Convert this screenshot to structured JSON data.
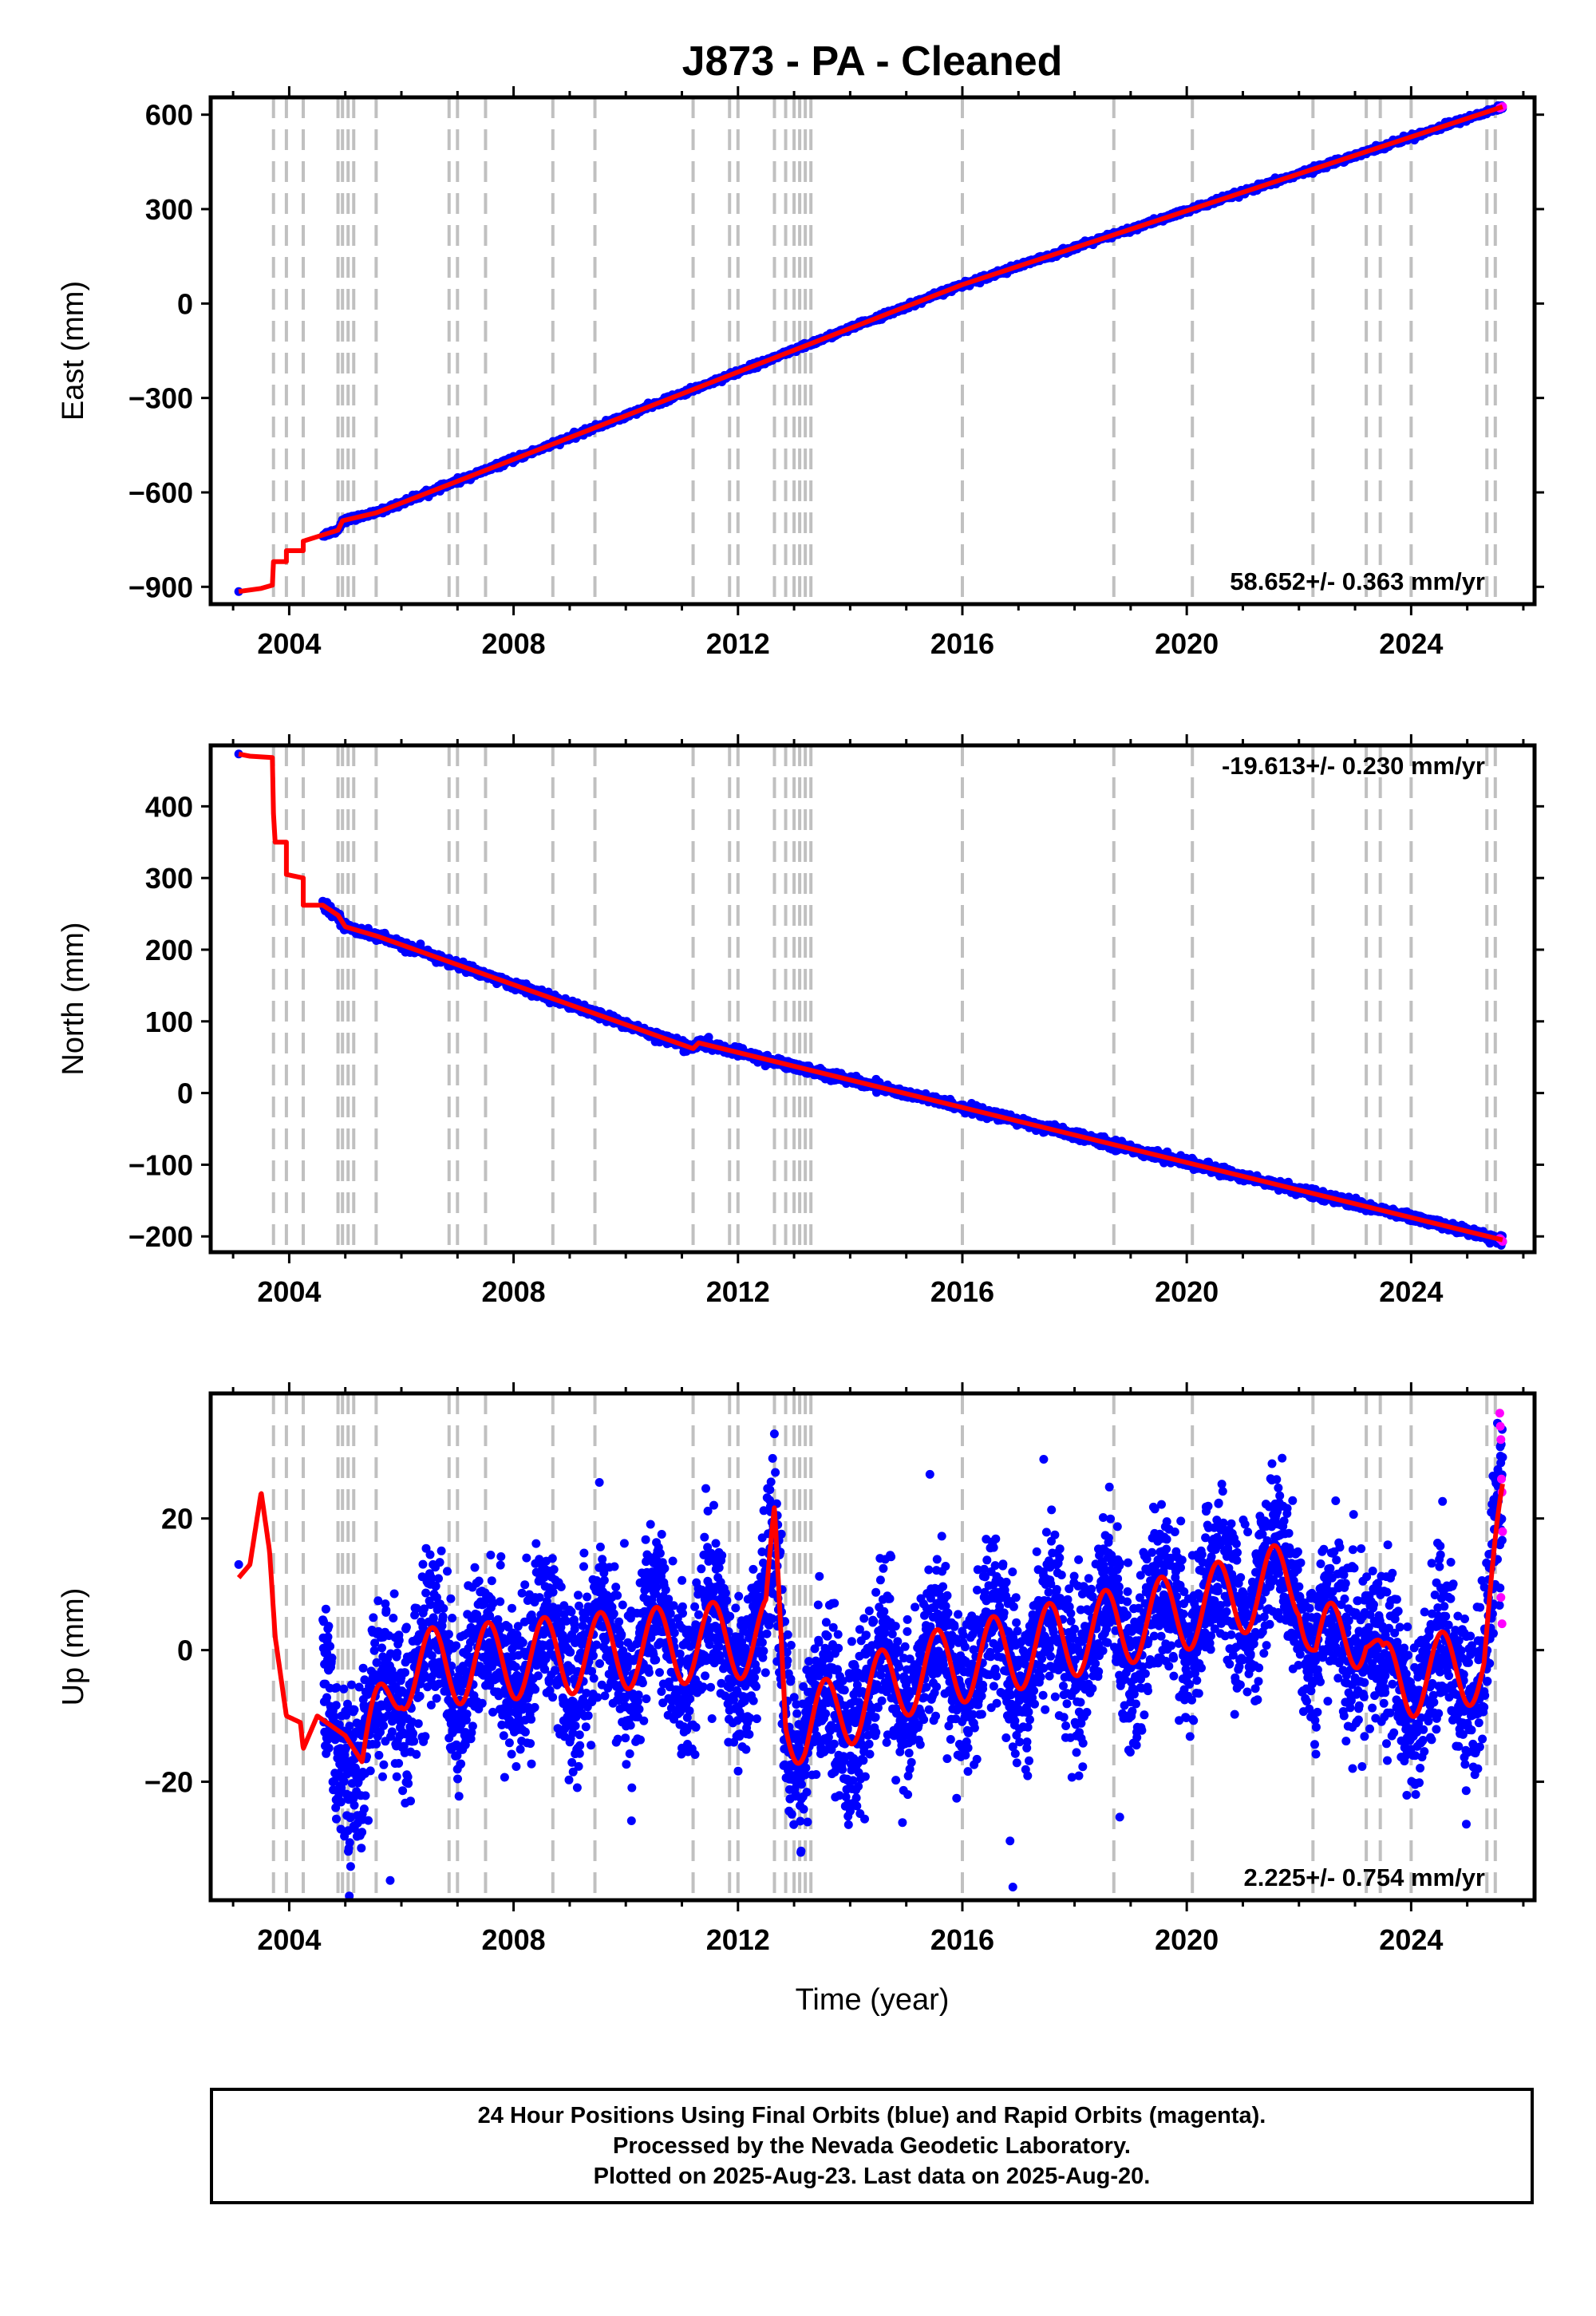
{
  "title": "J873  - PA - Cleaned",
  "footer": {
    "line1": "24 Hour Positions Using Final Orbits (blue) and Rapid Orbits (magenta).",
    "line2": "Processed by the Nevada Geodetic Laboratory.",
    "line3": "Plotted on 2025-Aug-23. Last data on 2025-Aug-20."
  },
  "colors": {
    "final_points": "#0000ff",
    "rapid_points": "#ff00ff",
    "model_line": "#ff0000",
    "event_lines": "#c0c0c0",
    "frame": "#000000"
  },
  "shared": {
    "xlabel": "Time (year)",
    "xlim": [
      2002.6,
      2026.2
    ],
    "x_ticks": [
      2004,
      2008,
      2012,
      2016,
      2020,
      2024
    ],
    "event_lines_year": [
      2003.72,
      2003.95,
      2004.25,
      2004.87,
      2004.95,
      2005.05,
      2005.15,
      2005.55,
      2006.85,
      2007.0,
      2007.5,
      2008.7,
      2009.45,
      2011.2,
      2011.85,
      2012.0,
      2012.65,
      2012.85,
      2013.0,
      2013.1,
      2013.2,
      2013.3,
      2016.0,
      2018.7,
      2020.1,
      2022.25,
      2023.2,
      2023.45,
      2024.0,
      2025.35,
      2025.5
    ]
  },
  "chart_data": [
    {
      "type": "scatter",
      "component": "east",
      "ylabel": "East (mm)",
      "ylim": [
        -955,
        655
      ],
      "y_ticks": [
        -900,
        -600,
        -300,
        0,
        300,
        600
      ],
      "rate_label": "58.652+/- 0.363 mm/yr",
      "rate_position": "bottom-right",
      "data_start": 2003.1,
      "data_start_value": -915,
      "data_end": 2025.63,
      "model_knots": [
        [
          2003.1,
          -915
        ],
        [
          2003.5,
          -905
        ],
        [
          2003.7,
          -895
        ],
        [
          2003.72,
          -820
        ],
        [
          2003.95,
          -820
        ],
        [
          2003.95,
          -785
        ],
        [
          2004.25,
          -785
        ],
        [
          2004.25,
          -755
        ],
        [
          2004.87,
          -720
        ],
        [
          2004.95,
          -690
        ],
        [
          2005.55,
          -665
        ],
        [
          2016.0,
          60
        ],
        [
          2025.63,
          625
        ]
      ],
      "series": [
        {
          "name": "final",
          "noise_mm": 4
        },
        {
          "name": "rapid",
          "x": [
            2025.58,
            2025.6,
            2025.62,
            2025.63
          ],
          "y": [
            621,
            622,
            624,
            626
          ]
        }
      ]
    },
    {
      "type": "scatter",
      "component": "north",
      "ylabel": "North (mm)",
      "ylim": [
        -222,
        485
      ],
      "y_ticks": [
        -200,
        -100,
        0,
        100,
        200,
        300,
        400
      ],
      "rate_label": "-19.613+/- 0.230 mm/yr",
      "rate_position": "top-right",
      "data_start": 2003.1,
      "data_start_value": 473,
      "data_end": 2025.63,
      "model_knots": [
        [
          2003.1,
          473
        ],
        [
          2003.3,
          470
        ],
        [
          2003.7,
          468
        ],
        [
          2003.72,
          390
        ],
        [
          2003.75,
          350
        ],
        [
          2003.95,
          350
        ],
        [
          2003.95,
          305
        ],
        [
          2004.25,
          300
        ],
        [
          2004.25,
          262
        ],
        [
          2004.6,
          262
        ],
        [
          2004.87,
          248
        ],
        [
          2005.0,
          232
        ],
        [
          2005.6,
          218
        ],
        [
          2011.2,
          62
        ],
        [
          2011.3,
          70
        ],
        [
          2025.63,
          -205
        ]
      ],
      "series": [
        {
          "name": "final",
          "noise_mm": 3
        },
        {
          "name": "rapid",
          "x": [
            2025.58,
            2025.6,
            2025.62,
            2025.63
          ],
          "y": [
            -203,
            -204,
            -206,
            -207
          ]
        }
      ]
    },
    {
      "type": "scatter",
      "component": "up",
      "ylabel": "Up (mm)",
      "ylim": [
        -38,
        39
      ],
      "y_ticks": [
        -20,
        0,
        20
      ],
      "rate_label": "2.225+/- 0.754 mm/yr",
      "rate_position": "bottom-right",
      "data_start": 2004.6,
      "data_end": 2025.63,
      "first_point": [
        2003.1,
        13
      ],
      "seasonal_amplitude_mm": 6,
      "scatter_spread_mm": 6,
      "model_knots": [
        [
          2003.1,
          11
        ],
        [
          2003.3,
          13
        ],
        [
          2003.5,
          24
        ],
        [
          2003.65,
          15
        ],
        [
          2003.75,
          2
        ],
        [
          2003.95,
          -10
        ],
        [
          2004.2,
          -11
        ],
        [
          2004.25,
          -15
        ],
        [
          2004.5,
          -10
        ],
        [
          2005.0,
          -13
        ],
        [
          2005.3,
          -17
        ],
        [
          2006.0,
          -3
        ],
        [
          2012.5,
          2
        ],
        [
          2012.65,
          17
        ],
        [
          2012.85,
          -10
        ],
        [
          2013.2,
          -12
        ],
        [
          2015.0,
          -4
        ],
        [
          2020.0,
          6
        ],
        [
          2022.0,
          11
        ],
        [
          2022.3,
          0
        ],
        [
          2023.2,
          4
        ],
        [
          2023.5,
          -5
        ],
        [
          2025.3,
          -2
        ],
        [
          2025.63,
          20
        ]
      ],
      "outliers": [
        [
          2005.8,
          -35
        ],
        [
          2016.85,
          -29
        ],
        [
          2016.9,
          -36
        ],
        [
          2017.45,
          29
        ]
      ],
      "series": [
        {
          "name": "final",
          "noise_mm": 6
        },
        {
          "name": "rapid",
          "x": [
            2025.58,
            2025.59,
            2025.6,
            2025.61,
            2025.62,
            2025.63,
            2025.6,
            2025.62
          ],
          "y": [
            36,
            34,
            32,
            26,
            24,
            18,
            8,
            4
          ]
        }
      ]
    }
  ]
}
